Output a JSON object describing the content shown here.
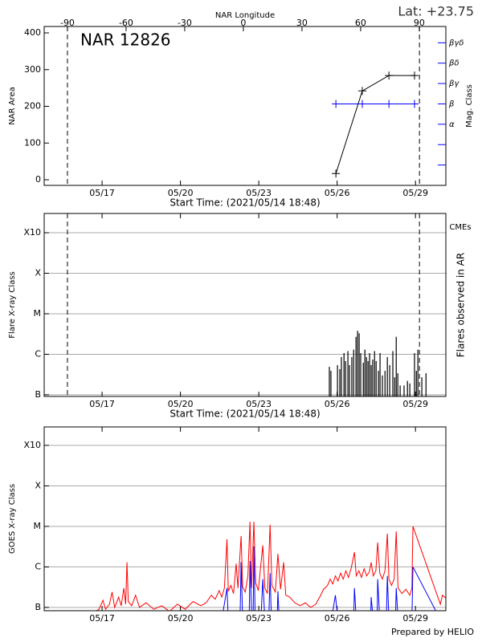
{
  "chart_data": [
    {
      "type": "line",
      "title": "NAR 12826",
      "subtitle": "Lat: +23.75",
      "x2label": "NAR Longitude",
      "xlabel": "Start Time: (2021/05/14 18:48)",
      "ylabel": "NAR Area",
      "y2label": "Mag. Class",
      "y2color": "#0000ff",
      "xlim": [
        0,
        15.38
      ],
      "xticks": [
        {
          "value": 2.217,
          "label": "05/17"
        },
        {
          "value": 5.217,
          "label": "05/20"
        },
        {
          "value": 8.217,
          "label": "05/23"
        },
        {
          "value": 11.217,
          "label": "05/26"
        },
        {
          "value": 14.217,
          "label": "05/29"
        }
      ],
      "x2lim": [
        -101.9,
        103.6
      ],
      "x2ticks": [
        -90,
        -60,
        -30,
        0,
        30,
        60,
        90
      ],
      "ylim": [
        -15.3,
        417.5
      ],
      "yticks": [
        0,
        100,
        200,
        300,
        400
      ],
      "y2lim": [
        0,
        7.8
      ],
      "y2minorticks": [
        1,
        2
      ],
      "y2ticks": [
        {
          "value": 3,
          "label": "α"
        },
        {
          "value": 4,
          "label": "β"
        },
        {
          "value": 5,
          "label": "βγ"
        },
        {
          "value": 6,
          "label": "βδ"
        },
        {
          "value": 7,
          "label": "βγδ"
        }
      ],
      "vlines": [
        0.89,
        14.37
      ],
      "series": [
        {
          "color": "#000000",
          "marker": "+",
          "x": [
            11.17,
            12.18,
            13.2,
            14.18
          ],
          "values": [
            17,
            242,
            284,
            284
          ]
        },
        {
          "color": "#0000ff",
          "marker": "+",
          "axis": "y2",
          "x": [
            11.17,
            12.18,
            13.2,
            14.18
          ],
          "values": [
            4,
            4,
            4,
            4
          ]
        }
      ]
    },
    {
      "type": "bar",
      "xlabel": "Start Time: (2021/05/14 18:48)",
      "ylabel": "Flare X-ray Class",
      "y2label": "Flares observed in AR",
      "annotation": {
        "text": "CMEs",
        "color": "#ff0000"
      },
      "log": true,
      "grid": true,
      "xlim": [
        0,
        15.38
      ],
      "xticks": [
        {
          "value": 2.217,
          "label": "05/17"
        },
        {
          "value": 5.217,
          "label": "05/20"
        },
        {
          "value": 8.217,
          "label": "05/23"
        },
        {
          "value": 11.217,
          "label": "05/26"
        },
        {
          "value": 14.217,
          "label": "05/29"
        }
      ],
      "ylim": [
        9.1e-08,
        0.00299
      ],
      "yticks": [
        {
          "value": 1e-07,
          "label": "B"
        },
        {
          "value": 1e-06,
          "label": "C"
        },
        {
          "value": 1e-05,
          "label": "M"
        },
        {
          "value": 0.0001,
          "label": "X"
        },
        {
          "value": 0.001,
          "label": "X10"
        }
      ],
      "vlines": [
        0.89,
        14.37
      ],
      "series": [
        {
          "color": "#000000",
          "x": [
            10.92,
            10.98,
            11.23,
            11.32,
            11.38,
            11.48,
            11.54,
            11.63,
            11.69,
            11.78,
            11.85,
            11.94,
            12.0,
            12.06,
            12.12,
            12.22,
            12.28,
            12.34,
            12.4,
            12.46,
            12.52,
            12.58,
            12.65,
            12.71,
            12.8,
            12.86,
            12.95,
            13.05,
            13.14,
            13.23,
            13.35,
            13.42,
            13.48,
            13.54,
            13.63,
            13.78,
            13.91,
            14.0,
            14.18,
            14.25,
            14.31,
            14.46,
            14.62
          ],
          "values": [
            4.9e-07,
            3.9e-07,
            5.4e-07,
            4.3e-07,
            8.5e-07,
            1.07e-06,
            6.8e-07,
            1.2e-06,
            5.4e-07,
            8.5e-07,
            1.3e-06,
            2.7e-06,
            3.8e-06,
            3.3e-06,
            1.07e-06,
            6.2e-07,
            1.3e-06,
            8.5e-07,
            6.8e-07,
            1.07e-06,
            5.4e-07,
            7.4e-07,
            1.2e-06,
            6.8e-07,
            3.9e-07,
            1.07e-06,
            3e-07,
            3.9e-07,
            8.5e-07,
            5.4e-07,
            1.2e-06,
            2.7e-07,
            2.7e-06,
            3.4e-07,
            1.7e-07,
            1.7e-07,
            2.2e-07,
            1.9e-07,
            1.07e-06,
            3.9e-07,
            1.3e-06,
            2.7e-07,
            3.4e-07
          ]
        }
      ]
    },
    {
      "type": "line",
      "ylabel": "GOES X-ray Class",
      "log": true,
      "grid": true,
      "xlim": [
        0,
        15.38
      ],
      "xticks": [
        {
          "value": 2.217,
          "label": "05/17"
        },
        {
          "value": 5.217,
          "label": "05/20"
        },
        {
          "value": 8.217,
          "label": "05/23"
        },
        {
          "value": 11.217,
          "label": "05/26"
        },
        {
          "value": 14.217,
          "label": "05/29"
        }
      ],
      "ylim": [
        8.3e-08,
        0.00285
      ],
      "yticks": [
        {
          "value": 1e-07,
          "label": "B"
        },
        {
          "value": 1e-06,
          "label": "C"
        },
        {
          "value": 1e-05,
          "label": "M"
        },
        {
          "value": 0.0001,
          "label": "X"
        },
        {
          "value": 0.001,
          "label": "X10"
        }
      ],
      "series": [
        {
          "color": "#ff0000",
          "x": [
            1.8,
            2.1,
            2.25,
            2.35,
            2.5,
            2.6,
            2.7,
            2.85,
            2.95,
            3.05,
            3.12,
            3.17,
            3.22,
            3.35,
            3.5,
            3.65,
            3.9,
            4.2,
            4.5,
            4.8,
            5.1,
            5.4,
            5.7,
            6.0,
            6.2,
            6.4,
            6.55,
            6.7,
            6.8,
            6.9,
            7.0,
            7.05,
            7.15,
            7.25,
            7.35,
            7.42,
            7.54,
            7.6,
            7.7,
            7.8,
            7.88,
            7.94,
            8.03,
            8.1,
            8.2,
            8.28,
            8.37,
            8.45,
            8.55,
            8.65,
            8.72,
            8.85,
            8.95,
            9.05,
            9.17,
            9.25,
            9.4,
            9.6,
            9.8,
            10.0,
            10.2,
            10.4,
            10.55,
            10.7,
            10.85,
            10.95,
            11.05,
            11.15,
            11.25,
            11.35,
            11.45,
            11.55,
            11.65,
            11.75,
            11.88,
            11.95,
            12.05,
            12.15,
            12.25,
            12.35,
            12.45,
            12.52,
            12.6,
            12.7,
            12.77,
            12.85,
            12.95,
            13.05,
            13.14,
            13.2,
            13.3,
            13.4,
            13.48,
            13.55,
            13.7,
            13.85,
            14.0,
            14.08,
            14.12,
            15.17,
            15.25,
            15.38
          ],
          "values": [
            7e-08,
            9e-08,
            1.5e-07,
            9e-08,
            1.2e-07,
            2.4e-07,
            1e-07,
            1.8e-07,
            1.1e-07,
            3e-07,
            1.2e-07,
            1.3e-06,
            1.4e-07,
            1.1e-07,
            2e-07,
            1e-07,
            1.3e-07,
            9e-08,
            1.1e-07,
            8e-08,
            1.2e-07,
            9e-08,
            1.4e-07,
            1.1e-07,
            1.3e-07,
            2e-07,
            1.6e-07,
            2.6e-07,
            1.8e-07,
            3e-07,
            4.8e-06,
            2.5e-07,
            3.5e-07,
            2.2e-07,
            1.2e-06,
            3e-07,
            5.8e-06,
            3.2e-07,
            2.4e-07,
            6e-07,
            1.3e-05,
            3e-07,
            1.3e-05,
            4e-07,
            2.6e-07,
            9e-07,
            3.4e-06,
            3e-07,
            2.2e-07,
            1.1e-05,
            3.5e-07,
            2.4e-07,
            2.1e-06,
            2.8e-07,
            1.3e-06,
            2e-07,
            1.8e-07,
            1.3e-07,
            1.1e-07,
            1.3e-07,
            1e-07,
            1.2e-07,
            1.8e-07,
            2.8e-07,
            3.5e-07,
            5e-07,
            3.8e-07,
            6e-07,
            4.5e-07,
            7e-07,
            5e-07,
            8e-07,
            5.5e-07,
            9e-07,
            2.3e-06,
            6e-07,
            8e-07,
            5.5e-07,
            9e-07,
            6e-07,
            7.5e-07,
            1.3e-06,
            6e-07,
            8e-07,
            4e-06,
            7e-07,
            5e-07,
            8e-07,
            6.6e-06,
            5e-07,
            3.5e-07,
            5e-07,
            7.5e-06,
            3e-07,
            2.2e-07,
            2.8e-07,
            2e-07,
            3e-07,
            1e-05,
            1.2e-07,
            2e-07,
            1.7e-07
          ]
        },
        {
          "color": "#0000ff",
          "x": [
            6.8,
            7.0,
            7.05,
            7.5,
            7.54,
            7.6,
            7.85,
            7.88,
            7.95,
            8.0,
            8.03,
            8.08,
            8.3,
            8.37,
            8.45,
            8.6,
            8.65,
            8.7,
            8.92,
            8.95,
            9.0,
            11.0,
            11.15,
            11.25,
            11.85,
            11.88,
            11.95,
            12.5,
            12.52,
            12.6,
            12.75,
            12.77,
            12.85,
            13.1,
            13.14,
            13.2,
            13.45,
            13.48,
            13.55,
            14.08,
            14.12,
            15.17,
            15.38
          ],
          "values": [
            5e-08,
            3e-07,
            5e-08,
            5e-08,
            1.3e-06,
            5e-08,
            5e-08,
            1.4e-06,
            5e-08,
            5e-08,
            3.2e-06,
            5e-08,
            5e-08,
            5e-07,
            5e-08,
            5e-08,
            7e-07,
            5e-08,
            5e-08,
            2.5e-07,
            5e-08,
            5e-08,
            2e-07,
            5e-08,
            5e-08,
            3e-07,
            5e-08,
            5e-08,
            1.8e-07,
            5e-08,
            5e-08,
            5e-07,
            5e-08,
            5e-08,
            6e-07,
            5e-08,
            5e-08,
            3e-07,
            5e-08,
            5e-08,
            1e-06,
            5e-08,
            6e-08
          ]
        }
      ]
    }
  ],
  "footer": "Prepared by HELIO"
}
